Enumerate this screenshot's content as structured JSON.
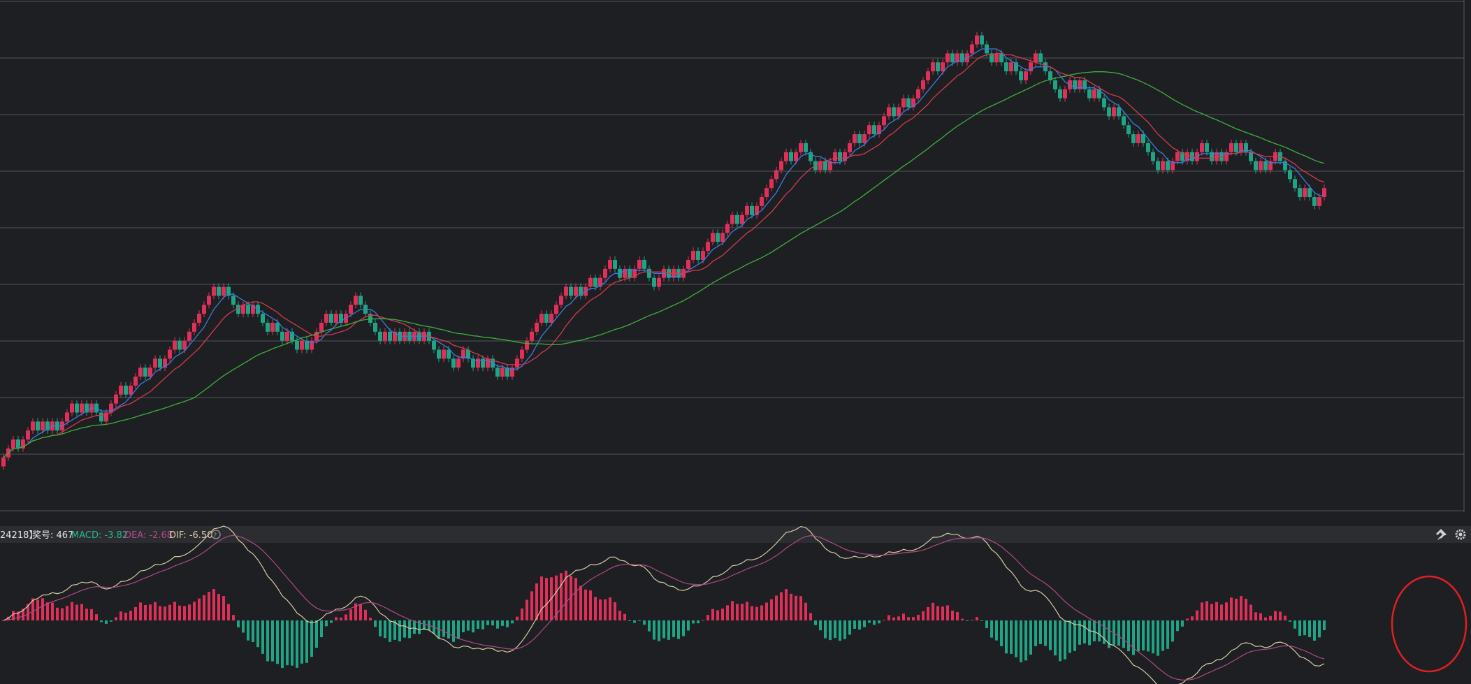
{
  "colors": {
    "background": "#1e1f22",
    "grid": "#54565c",
    "up": "#e0305a",
    "down": "#1fa485",
    "ma_fast": "#3b7de0",
    "ma_mid": "#d43a50",
    "ma_slow": "#3fae3f",
    "dif": "#d9c9a8",
    "dea": "#b04a86",
    "indicator_bar_bg": "#2c2d31",
    "highlight_circle": "#e02020"
  },
  "indicator_bar": {
    "prefix": "24218】",
    "index_label": "奖号: 467",
    "macd": "MACD: -3.82",
    "dea": "DEA: -2.68",
    "dif": "DIF: -6.50",
    "help_icon": "help-circle-icon",
    "pin_icon": "pin-icon",
    "settings_icon": "gear-icon"
  },
  "chart_data": [
    {
      "type": "candlestick",
      "description_series": [
        "renko bricks",
        "MA fast",
        "MA mid",
        "MA slow"
      ],
      "bricks": "+++-+++-+-+-+++-+-+--++++-+++-++-+++-+++++++-+---+-+---+--+--+-++++-+-+++-----+-+-+-+-+---+--++--+-+--+-+++++++-++++-+-++-+++--+-++---++-+-+++-+++-+++-++-+++++++-++---+-++-+++-++-+++-++-+++++-++-+-+++---+--+--+++-----++-+--+---+----+----+-++-+-++--+-++-+---+-++-----+--++",
      "start_value": 78,
      "brick_size": 5.5,
      "ma_periods": [
        6,
        12,
        40
      ],
      "ylim": [
        50,
        350
      ],
      "grid": true
    },
    {
      "type": "bar+line",
      "name": "MACD",
      "ylim": [
        -10,
        10
      ],
      "grid": false
    }
  ]
}
